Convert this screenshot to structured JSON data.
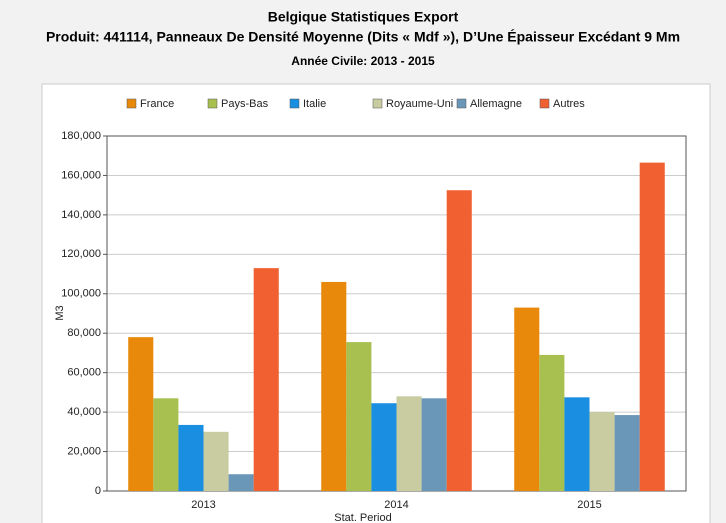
{
  "chart_data": {
    "type": "bar",
    "title": "Belgique Statistiques Export",
    "subtitle": "Produit: 441114, Panneaux De Densité Moyenne (Dits « Mdf »), D’Une Épaisseur Excédant 9 Mm",
    "period": "Année Civile: 2013 - 2015",
    "x_label": "Stat. Period",
    "y_label": "M3",
    "categories": [
      "2013",
      "2014",
      "2015"
    ],
    "series": [
      {
        "name": "France",
        "color": "#e8890c",
        "values": [
          78000,
          106000,
          93000
        ]
      },
      {
        "name": "Pays-Bas",
        "color": "#a8c050",
        "values": [
          47000,
          75500,
          69000
        ]
      },
      {
        "name": "Italie",
        "color": "#1a8ee0",
        "values": [
          33500,
          44500,
          47500
        ]
      },
      {
        "name": "Royaume-Uni",
        "color": "#c8cca0",
        "values": [
          30000,
          48000,
          40000
        ]
      },
      {
        "name": "Allemagne",
        "color": "#6a96b8",
        "values": [
          8500,
          47000,
          38500
        ]
      },
      {
        "name": "Autres",
        "color": "#f06030",
        "values": [
          113000,
          152500,
          166500
        ]
      }
    ],
    "ylim": [
      0,
      180000
    ],
    "yticks": [
      0,
      {
        "value": 20000,
        "label": "20,000"
      },
      {
        "value": 40000,
        "label": "40,000"
      },
      {
        "value": 60000,
        "label": "60,000"
      },
      {
        "value": 80000,
        "label": "80,000"
      },
      {
        "value": 100000,
        "label": "100,000"
      },
      {
        "value": 120000,
        "label": "120,000"
      },
      {
        "value": 140000,
        "label": "140,000"
      },
      {
        "value": 160000,
        "label": "160,000"
      },
      {
        "value": 180000,
        "label": "180,000"
      }
    ],
    "grid": true,
    "legend": "top"
  }
}
